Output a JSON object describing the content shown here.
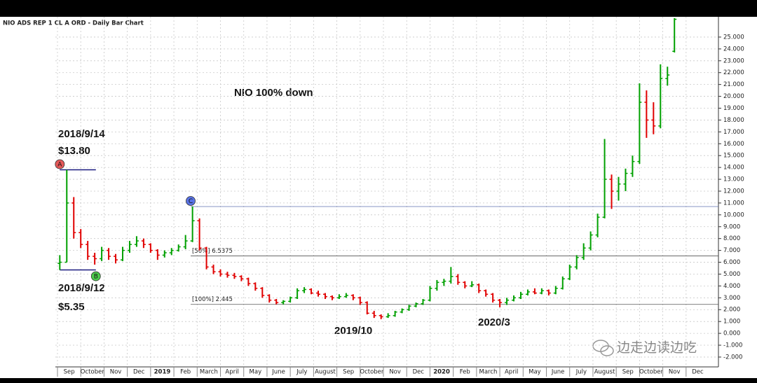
{
  "chart_data": {
    "type": "ohlc",
    "title": "NIO ADS REP 1 CL A ORD - Daily Bar Chart",
    "up_color": "#00a000",
    "down_color": "#e00000",
    "grid": true,
    "x": [
      0.1,
      0.4,
      0.7,
      1.0,
      1.3,
      1.6,
      1.9,
      2.2,
      2.5,
      2.8,
      3.1,
      3.4,
      3.7,
      4.0,
      4.3,
      4.6,
      4.9,
      5.2,
      5.5,
      5.8,
      6.1,
      6.4,
      6.7,
      7.0,
      7.3,
      7.6,
      7.9,
      8.2,
      8.5,
      8.8,
      9.1,
      9.4,
      9.7,
      10.0,
      10.3,
      10.6,
      10.9,
      11.2,
      11.5,
      11.8,
      12.1,
      12.4,
      12.7,
      13.0,
      13.3,
      13.6,
      13.9,
      14.2,
      14.5,
      14.8,
      15.1,
      15.4,
      15.7,
      16.0,
      16.3,
      16.6,
      16.9,
      17.2,
      17.5,
      17.8,
      18.1,
      18.4,
      18.7,
      19.0,
      19.3,
      19.6,
      19.9,
      20.2,
      20.5,
      20.8,
      21.1,
      21.4,
      21.7,
      22.0,
      22.3,
      22.6,
      22.9,
      23.2,
      23.5,
      23.8,
      24.1,
      24.4,
      24.7,
      25.0,
      25.3,
      25.6,
      25.9,
      26.2,
      26.5
    ],
    "open": [
      5.9,
      6.0,
      11.0,
      8.5,
      7.5,
      6.5,
      6.3,
      7.0,
      6.5,
      6.2,
      7.0,
      7.5,
      7.8,
      7.5,
      7.0,
      6.6,
      6.8,
      7.0,
      7.3,
      7.8,
      9.5,
      7.2,
      5.6,
      5.2,
      5.0,
      4.9,
      4.8,
      4.6,
      4.2,
      3.8,
      3.2,
      2.8,
      2.6,
      2.7,
      3.0,
      3.6,
      3.7,
      3.4,
      3.3,
      3.1,
      3.0,
      3.1,
      3.2,
      3.0,
      2.6,
      1.7,
      1.5,
      1.4,
      1.5,
      1.8,
      2.0,
      2.3,
      2.5,
      2.8,
      3.8,
      4.3,
      4.4,
      4.8,
      4.3,
      4.0,
      4.1,
      3.6,
      3.3,
      2.8,
      2.6,
      2.8,
      3.0,
      3.3,
      3.5,
      3.4,
      3.6,
      3.4,
      3.8,
      4.6,
      5.6,
      6.4,
      7.2,
      8.3,
      9.8,
      13.0,
      12.0,
      12.6,
      13.5,
      14.5,
      19.5,
      18.0,
      17.5,
      21.5,
      23.8
    ],
    "high": [
      6.6,
      13.8,
      11.5,
      8.8,
      7.8,
      6.8,
      7.3,
      7.2,
      6.7,
      7.3,
      7.8,
      8.2,
      8.0,
      7.6,
      7.1,
      7.0,
      7.2,
      7.5,
      8.3,
      10.7,
      9.7,
      7.3,
      5.8,
      5.4,
      5.2,
      5.1,
      4.9,
      4.7,
      4.3,
      3.9,
      3.3,
      2.9,
      2.8,
      3.1,
      3.8,
      3.9,
      3.8,
      3.6,
      3.4,
      3.2,
      3.3,
      3.4,
      3.3,
      3.1,
      2.7,
      1.9,
      1.6,
      1.7,
      1.9,
      2.1,
      2.4,
      2.6,
      2.9,
      4.0,
      4.5,
      4.6,
      5.6,
      5.0,
      4.4,
      4.4,
      4.2,
      3.7,
      3.4,
      2.9,
      3.0,
      3.2,
      3.5,
      3.7,
      3.8,
      3.8,
      3.7,
      4.0,
      4.8,
      5.8,
      6.6,
      7.6,
      8.6,
      10.1,
      16.4,
      13.4,
      13.2,
      13.9,
      15.0,
      21.1,
      20.5,
      19.5,
      22.7,
      22.5,
      26.6
    ],
    "low": [
      5.35,
      6.0,
      8.0,
      7.2,
      6.2,
      5.8,
      6.1,
      6.2,
      5.9,
      6.1,
      6.8,
      7.3,
      7.2,
      6.8,
      6.2,
      6.4,
      6.6,
      6.9,
      7.1,
      7.7,
      7.0,
      5.4,
      5.0,
      4.8,
      4.7,
      4.6,
      4.4,
      4.0,
      3.6,
      3.0,
      2.6,
      2.45,
      2.45,
      2.6,
      2.9,
      3.4,
      3.3,
      3.1,
      2.9,
      2.8,
      2.9,
      3.0,
      2.8,
      2.4,
      1.6,
      1.3,
      1.2,
      1.3,
      1.4,
      1.7,
      1.9,
      2.2,
      2.4,
      2.7,
      3.6,
      4.0,
      4.2,
      4.1,
      3.8,
      3.9,
      3.4,
      3.1,
      2.6,
      2.2,
      2.4,
      2.7,
      2.9,
      3.2,
      3.3,
      3.3,
      3.2,
      3.3,
      3.7,
      4.5,
      5.4,
      6.2,
      7.0,
      8.1,
      9.7,
      10.5,
      11.2,
      12.0,
      13.2,
      14.3,
      16.5,
      16.8,
      17.3,
      20.9,
      23.7
    ],
    "close": [
      6.0,
      11.0,
      8.5,
      7.5,
      6.5,
      6.3,
      7.0,
      6.5,
      6.2,
      7.0,
      7.5,
      7.8,
      7.5,
      7.0,
      6.6,
      6.8,
      7.0,
      7.3,
      7.8,
      9.5,
      7.2,
      5.6,
      5.2,
      5.0,
      4.9,
      4.8,
      4.6,
      4.2,
      3.8,
      3.2,
      2.8,
      2.6,
      2.7,
      3.0,
      3.6,
      3.7,
      3.4,
      3.3,
      3.1,
      3.0,
      3.1,
      3.2,
      3.0,
      2.6,
      1.7,
      1.5,
      1.4,
      1.5,
      1.8,
      2.0,
      2.3,
      2.5,
      2.8,
      3.8,
      4.3,
      4.4,
      4.8,
      4.3,
      4.0,
      4.1,
      3.6,
      3.3,
      2.8,
      2.6,
      2.8,
      3.0,
      3.3,
      3.5,
      3.4,
      3.6,
      3.4,
      3.8,
      4.6,
      5.6,
      6.4,
      7.2,
      8.3,
      9.8,
      13.0,
      12.0,
      12.6,
      13.5,
      14.5,
      19.5,
      18.0,
      17.5,
      21.5,
      21.8,
      26.5
    ],
    "xlim": [
      -0.09,
      28.39
    ],
    "ylim": [
      -2.83,
      26.71
    ],
    "xticks": [
      {
        "value": 0,
        "label": "Sep"
      },
      {
        "value": 1,
        "label": "October"
      },
      {
        "value": 2,
        "label": "Nov"
      },
      {
        "value": 3,
        "label": "Dec"
      },
      {
        "value": 4,
        "label": "2019"
      },
      {
        "value": 5,
        "label": "Feb"
      },
      {
        "value": 6,
        "label": "March"
      },
      {
        "value": 7,
        "label": "April"
      },
      {
        "value": 8,
        "label": "May"
      },
      {
        "value": 9,
        "label": "June"
      },
      {
        "value": 10,
        "label": "July"
      },
      {
        "value": 11,
        "label": "August"
      },
      {
        "value": 12,
        "label": "Sep"
      },
      {
        "value": 13,
        "label": "October"
      },
      {
        "value": 14,
        "label": "Nov"
      },
      {
        "value": 15,
        "label": "Dec"
      },
      {
        "value": 16,
        "label": "2020"
      },
      {
        "value": 17,
        "label": "Feb"
      },
      {
        "value": 18,
        "label": "March"
      },
      {
        "value": 19,
        "label": "April"
      },
      {
        "value": 20,
        "label": "May"
      },
      {
        "value": 21,
        "label": "June"
      },
      {
        "value": 22,
        "label": "July"
      },
      {
        "value": 23,
        "label": "August"
      },
      {
        "value": 24,
        "label": "Sep"
      },
      {
        "value": 25,
        "label": "October"
      },
      {
        "value": 26,
        "label": "Nov"
      },
      {
        "value": 27,
        "label": "Dec"
      }
    ],
    "yticks": [
      {
        "value": -2,
        "label": "-2.000"
      },
      {
        "value": -1,
        "label": "-1.000"
      },
      {
        "value": 0,
        "label": "0.000"
      },
      {
        "value": 1,
        "label": "1.000"
      },
      {
        "value": 2,
        "label": "2.000"
      },
      {
        "value": 3,
        "label": "3.000"
      },
      {
        "value": 4,
        "label": "4.000"
      },
      {
        "value": 5,
        "label": "5.000"
      },
      {
        "value": 6,
        "label": "6.000"
      },
      {
        "value": 7,
        "label": "7.000"
      },
      {
        "value": 8,
        "label": "8.000"
      },
      {
        "value": 9,
        "label": "9.000"
      },
      {
        "value": 10,
        "label": "10.000"
      },
      {
        "value": 11,
        "label": "11.000"
      },
      {
        "value": 12,
        "label": "12.000"
      },
      {
        "value": 13,
        "label": "13.000"
      },
      {
        "value": 14,
        "label": "14.000"
      },
      {
        "value": 15,
        "label": "15.000"
      },
      {
        "value": 16,
        "label": "16.000"
      },
      {
        "value": 17,
        "label": "17.000"
      },
      {
        "value": 18,
        "label": "18.000"
      },
      {
        "value": 19,
        "label": "19.000"
      },
      {
        "value": 20,
        "label": "20.000"
      },
      {
        "value": 21,
        "label": "21.000"
      },
      {
        "value": 22,
        "label": "22.000"
      },
      {
        "value": 23,
        "label": "23.000"
      },
      {
        "value": 24,
        "label": "24.000"
      },
      {
        "value": 25,
        "label": "25.000"
      }
    ],
    "points": [
      {
        "label": "A",
        "x": 0.1,
        "y": 13.8,
        "x_end": 1.65,
        "color": "#e03030"
      },
      {
        "label": "B",
        "x": 1.65,
        "y": 5.35,
        "x_start": 0.1,
        "color": "#20c020"
      },
      {
        "label": "C",
        "x": 5.72,
        "y": 10.7,
        "x_end": 28.39,
        "color": "#3050e0"
      }
    ],
    "levels": [
      {
        "value": 6.5375,
        "label": "[50%] 6.5375"
      },
      {
        "value": 2.445,
        "label": "[100%] 2.445"
      }
    ],
    "annotations": [
      "NIO 100% down",
      "2018/9/14",
      "$13.80",
      "2018/9/12",
      "$5.35",
      "2019/10",
      "2020/3"
    ],
    "watermark": "边走边读边吃"
  }
}
